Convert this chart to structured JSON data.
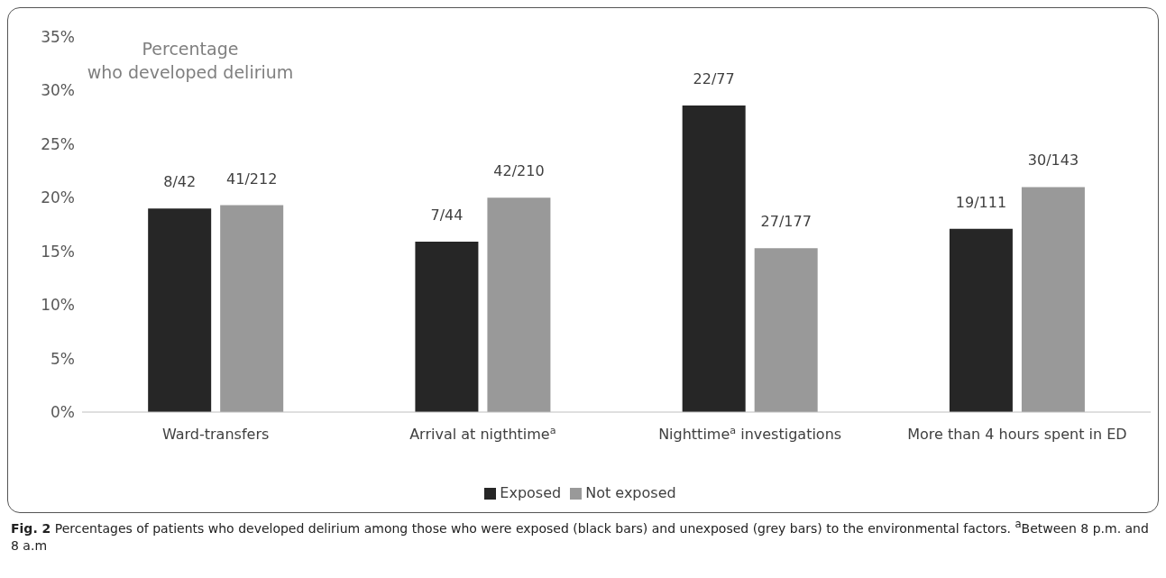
{
  "chart_data": {
    "type": "bar",
    "ylabel": "Percentage who developed delirium",
    "categories": [
      "Ward-transfers",
      "Arrival at nigthtime$^{a}$",
      "Nighttime$^{a}$ investigations",
      "More than 4 hours spent in ED"
    ],
    "series": [
      {
        "name": "Exposed",
        "color": "#262626",
        "values": [
          19.0,
          15.9,
          28.6,
          17.1
        ],
        "value_labels": [
          "8/42",
          "7/44",
          "22/77",
          "19/111"
        ]
      },
      {
        "name": "Not exposed",
        "color": "#999999",
        "values": [
          19.3,
          20.0,
          15.3,
          21.0
        ],
        "value_labels": [
          "41/212",
          "42/210",
          "27/177",
          "30/143"
        ]
      }
    ],
    "ylim": [
      0,
      35
    ],
    "yticks": [
      {
        "value": 0,
        "label": "0%"
      },
      {
        "value": 5,
        "label": "5%"
      },
      {
        "value": 10,
        "label": "10%"
      },
      {
        "value": 15,
        "label": "15%"
      },
      {
        "value": 20,
        "label": "20%"
      },
      {
        "value": 25,
        "label": "25%"
      },
      {
        "value": 30,
        "label": "30%"
      },
      {
        "value": 35,
        "label": "35%"
      }
    ],
    "grid": false,
    "legend": "bottom",
    "annotations": [
      "Fig. 2 Percentages of patients who developed delirium among those who were exposed (black bars) and unexposed (grey bars) to the environmental factors. $^{a}$Between 8 p.m. and 8 a.m"
    ]
  }
}
